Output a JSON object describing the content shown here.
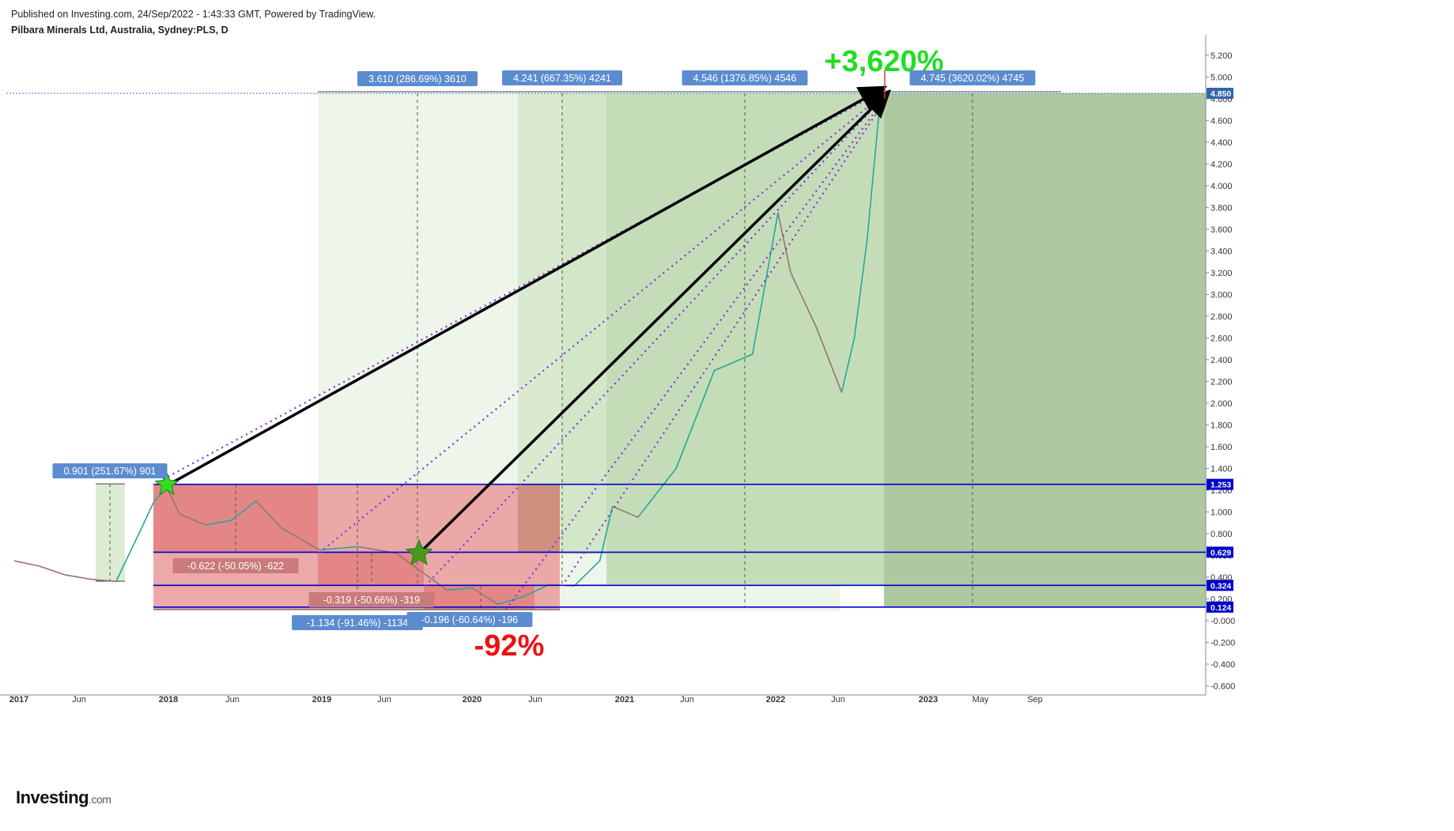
{
  "header": {
    "published": "Published on Investing.com, 24/Sep/2022 - 1:43:33 GMT, Powered by TradingView.",
    "symbol": "Pilbara Minerals Ltd, Australia, Sydney:PLS, D"
  },
  "logo": {
    "brand": "Investing",
    "domain": ".com"
  },
  "colors": {
    "price_up": "#26a69a",
    "price_down": "#ef5350",
    "hline": "#0000cc",
    "gain_headline": "#22dd22",
    "loss_headline": "#ee1111",
    "dotted": "#8a2be2",
    "arrow": "#000000",
    "annotation_box": "#5b8cd0",
    "loss_box": "#c97a7a"
  },
  "chart_data": {
    "type": "line",
    "title": "Pilbara Minerals Ltd, Australia, Sydney:PLS, D",
    "interval": "D",
    "xlabel": "",
    "ylabel": "",
    "x_ticks": [
      "2017",
      "Jun",
      "2018",
      "Jun",
      "2019",
      "Jun",
      "2020",
      "Jun",
      "2021",
      "Jun",
      "2022",
      "Jun",
      "2023",
      "May",
      "Sep"
    ],
    "y_ticks": [
      "5.200",
      "5.000",
      "4.800",
      "4.600",
      "4.400",
      "4.200",
      "4.000",
      "3.800",
      "3.600",
      "3.400",
      "3.200",
      "3.000",
      "2.800",
      "2.600",
      "2.400",
      "2.200",
      "2.000",
      "1.800",
      "1.600",
      "1.400",
      "1.200",
      "1.000",
      "0.800",
      "0.600",
      "0.400",
      "0.200",
      "-0.000",
      "-0.200",
      "-0.400",
      "-0.600"
    ],
    "ylim": [
      -0.6,
      5.3
    ],
    "xlim": [
      "2017-01",
      "2023-12"
    ],
    "series": [
      {
        "values": [
          [
            "2017-01",
            0.55
          ],
          [
            "2017-03",
            0.5
          ],
          [
            "2017-05",
            0.42
          ],
          [
            "2017-07",
            0.38
          ],
          [
            "2017-09",
            0.36
          ],
          [
            "2017-11",
            0.85
          ],
          [
            "2017-12",
            1.1
          ],
          [
            "2018-01",
            1.22
          ],
          [
            "2018-02",
            0.98
          ],
          [
            "2018-04",
            0.88
          ],
          [
            "2018-06",
            0.92
          ],
          [
            "2018-08",
            1.1
          ],
          [
            "2018-10",
            0.85
          ],
          [
            "2019-01",
            0.65
          ],
          [
            "2019-04",
            0.68
          ],
          [
            "2019-07",
            0.62
          ],
          [
            "2019-09",
            0.45
          ],
          [
            "2019-11",
            0.28
          ],
          [
            "2020-01",
            0.3
          ],
          [
            "2020-03",
            0.15
          ],
          [
            "2020-05",
            0.22
          ],
          [
            "2020-07",
            0.33
          ],
          [
            "2020-09",
            0.32
          ],
          [
            "2020-11",
            0.55
          ],
          [
            "2020-12",
            1.05
          ],
          [
            "2021-02",
            0.95
          ],
          [
            "2021-05",
            1.4
          ],
          [
            "2021-08",
            2.3
          ],
          [
            "2021-11",
            2.45
          ],
          [
            "2021-12",
            3.1
          ],
          [
            "2022-01",
            3.75
          ],
          [
            "2022-02",
            3.2
          ],
          [
            "2022-04",
            2.7
          ],
          [
            "2022-06",
            2.1
          ],
          [
            "2022-07",
            2.6
          ],
          [
            "2022-08",
            3.5
          ],
          [
            "2022-09",
            4.75
          ]
        ]
      }
    ],
    "horizontal_levels": [
      "4.850",
      "1.253",
      "0.629",
      "0.324",
      "0.124"
    ],
    "measurements": [
      {
        "label": "0.901 (251.67%) 901"
      },
      {
        "label": "3.610 (286.69%) 3610"
      },
      {
        "label": "4.241 (667.35%) 4241"
      },
      {
        "label": "4.546 (1376.85%) 4546"
      },
      {
        "label": "4.745 (3620.02%) 4745"
      },
      {
        "label": "-0.622 (-50.05%) -622"
      },
      {
        "label": "-0.319 (-50.66%) -319"
      },
      {
        "label": "-1.134 (-91.46%) -1134"
      },
      {
        "label": "-0.196 (-60.64%) -196"
      }
    ],
    "headline_gain": "+3,620%",
    "headline_loss": "-92%"
  }
}
